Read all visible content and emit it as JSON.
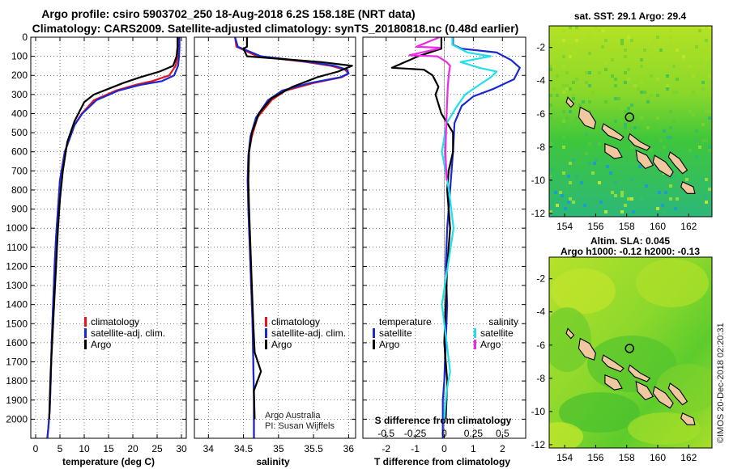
{
  "title_line1": "Argo profile: csiro 5903702_250 18-Aug-2018 6.2S 158.18E (NRT data)",
  "title_line2": "Climatology: CARS2009. Satellite-adjusted climatology: synTS_20180818.nc (0.48d earlier)",
  "credit_line1": "Argo Australia",
  "credit_line2": "PI: Susan Wijffels",
  "imos_stamp": "©IMOS 20-Dec-2018 02:20:31",
  "colors": {
    "climatology": "#e8141c",
    "satellite": "#1a28d0",
    "argo": "#000000",
    "salinity_satellite": "#20e0ee",
    "salinity_argo": "#ee28e6"
  },
  "legends": {
    "temperature_panel": [
      "climatology",
      "satellite-adj. clim.",
      "Argo"
    ],
    "salinity_panel": [
      "climatology",
      "satellite-adj. clim.",
      "Argo"
    ],
    "difference_panel": {
      "temp_header": "temperature",
      "sal_header": "salinity",
      "temp_items": [
        "satellite",
        "Argo"
      ],
      "sal_items": [
        "satellite",
        "Argo"
      ]
    }
  },
  "chart_data": [
    {
      "type": "line",
      "name": "temperature-profile",
      "xlabel": "temperature (deg C)",
      "ylabel": "",
      "xlim": [
        -1,
        31
      ],
      "ylim": [
        2100,
        0
      ],
      "xticks": [
        0,
        5,
        10,
        15,
        20,
        25,
        30
      ],
      "yticks": [
        0,
        100,
        200,
        300,
        400,
        500,
        600,
        700,
        800,
        900,
        1000,
        1100,
        1200,
        1300,
        1400,
        1500,
        1600,
        1700,
        1800,
        1900,
        2000
      ],
      "grid": true,
      "legend": "lower-right",
      "series": [
        {
          "name": "climatology",
          "color": "#e8141c",
          "x": [
            29.3,
            29.3,
            29.2,
            28.8,
            27.5,
            24.0,
            20.5,
            16.5,
            12.0,
            9.5,
            8.0,
            6.0,
            5.0,
            4.6,
            4.2,
            3.9,
            3.6,
            3.3,
            3.1,
            2.9,
            2.6,
            2.4
          ],
          "y": [
            0,
            50,
            100,
            150,
            200,
            230,
            250,
            280,
            330,
            400,
            460,
            600,
            750,
            900,
            1050,
            1200,
            1400,
            1600,
            1800,
            1950,
            2050,
            2100
          ]
        },
        {
          "name": "satellite-adj. clim.",
          "color": "#1a28d0",
          "x": [
            29.6,
            29.6,
            29.5,
            29.3,
            28.5,
            26.0,
            21.5,
            17.0,
            12.5,
            9.6,
            8.0,
            6.0,
            5.0,
            4.6,
            4.2,
            3.9,
            3.6,
            3.3,
            3.1,
            2.9,
            2.6,
            2.4
          ],
          "y": [
            0,
            50,
            100,
            150,
            200,
            230,
            250,
            280,
            330,
            400,
            460,
            600,
            750,
            900,
            1050,
            1200,
            1400,
            1600,
            1800,
            1950,
            2050,
            2100
          ]
        },
        {
          "name": "Argo",
          "color": "#000000",
          "x": [
            29.2,
            29.2,
            29.0,
            28.3,
            25.5,
            21.5,
            18.0,
            15.0,
            12.0,
            10.0,
            8.0,
            6.5,
            5.6,
            5.0,
            4.6,
            4.3,
            4.0,
            3.7,
            3.4,
            3.1,
            2.9,
            2.8
          ],
          "y": [
            0,
            50,
            100,
            150,
            180,
            210,
            240,
            270,
            300,
            340,
            440,
            550,
            700,
            850,
            1000,
            1150,
            1300,
            1450,
            1600,
            1750,
            1900,
            2000
          ]
        }
      ]
    },
    {
      "type": "line",
      "name": "salinity-profile",
      "xlabel": "salinity",
      "ylabel": "",
      "xlim": [
        33.8,
        36.1
      ],
      "ylim": [
        2100,
        0
      ],
      "xticks": [
        34,
        34.5,
        35,
        35.5,
        36
      ],
      "yticks": [
        0,
        100,
        200,
        300,
        400,
        500,
        600,
        700,
        800,
        900,
        1000,
        1100,
        1200,
        1300,
        1400,
        1500,
        1600,
        1700,
        1800,
        1900,
        2000
      ],
      "grid": true,
      "legend": "lower-right",
      "series": [
        {
          "name": "climatology",
          "color": "#e8141c",
          "x": [
            34.38,
            34.4,
            34.7,
            35.4,
            35.75,
            35.95,
            36.0,
            35.9,
            35.5,
            35.1,
            34.9,
            34.7,
            34.62,
            34.57,
            34.56,
            34.57,
            34.59,
            34.61,
            34.63,
            34.64,
            34.65,
            34.65
          ],
          "y": [
            0,
            50,
            100,
            130,
            150,
            170,
            190,
            210,
            240,
            280,
            330,
            420,
            520,
            620,
            750,
            900,
            1100,
            1300,
            1500,
            1700,
            1900,
            2100
          ]
        },
        {
          "name": "satellite-adj. clim.",
          "color": "#1a28d0",
          "x": [
            34.38,
            34.42,
            34.75,
            35.45,
            35.8,
            35.98,
            36.0,
            35.88,
            35.45,
            35.05,
            34.85,
            34.68,
            34.6,
            34.57,
            34.56,
            34.57,
            34.59,
            34.61,
            34.63,
            34.64,
            34.65,
            34.65
          ],
          "y": [
            0,
            50,
            100,
            130,
            150,
            170,
            190,
            210,
            240,
            280,
            330,
            420,
            520,
            620,
            750,
            900,
            1100,
            1300,
            1500,
            1700,
            1900,
            2100
          ]
        },
        {
          "name": "Argo",
          "color": "#000000",
          "x": [
            34.55,
            34.55,
            34.5,
            34.55,
            35.6,
            36.05,
            35.85,
            35.55,
            35.2,
            34.9,
            34.72,
            34.62,
            34.58,
            34.57,
            34.58,
            34.6,
            34.62,
            34.64,
            34.66,
            34.75,
            34.65,
            34.66
          ],
          "y": [
            0,
            50,
            60,
            100,
            130,
            150,
            180,
            210,
            260,
            320,
            400,
            500,
            600,
            750,
            900,
            1100,
            1300,
            1500,
            1650,
            1750,
            1850,
            2000
          ]
        }
      ]
    },
    {
      "type": "line",
      "name": "difference-from-climatology",
      "xlabel": "T difference from climatology",
      "x2label": "S difference from climatology",
      "ylabel": "",
      "xlim": [
        -2.8,
        2.8
      ],
      "x2lim": [
        -0.7,
        0.7
      ],
      "ylim": [
        2100,
        0
      ],
      "xticks": [
        -2,
        -1,
        0,
        1,
        2
      ],
      "x2ticks": [
        -0.5,
        -0.25,
        0,
        0.25,
        0.5
      ],
      "x2ticklabels": [
        "-0.5",
        "-0.25",
        "0",
        "0.25",
        "0.5"
      ],
      "yticks": [
        0,
        100,
        200,
        300,
        400,
        500,
        600,
        700,
        800,
        900,
        1000,
        1100,
        1200,
        1300,
        1400,
        1500,
        1600,
        1700,
        1800,
        1900,
        2000
      ],
      "grid": true,
      "legend": "lower",
      "series": [
        {
          "name": "T satellite",
          "axis": "T",
          "color": "#1a28d0",
          "x": [
            0.3,
            0.3,
            0.6,
            1.8,
            2.3,
            2.6,
            2.4,
            1.7,
            1.0,
            0.6,
            0.35,
            0.3,
            0.2,
            0.1,
            0.05,
            0.1,
            0.05,
            0.0,
            -0.05,
            -0.05,
            -0.05
          ],
          "y": [
            0,
            40,
            60,
            80,
            120,
            160,
            220,
            270,
            310,
            360,
            450,
            600,
            800,
            1000,
            1200,
            1400,
            1600,
            1800,
            1900,
            2000,
            2100
          ]
        },
        {
          "name": "T Argo",
          "axis": "T",
          "color": "#000000",
          "x": [
            -0.1,
            -0.1,
            -0.9,
            -1.8,
            -0.7,
            -0.4,
            -0.2,
            -0.3,
            -0.1,
            0.3,
            0.3,
            0.15,
            0.1,
            0.15,
            0.2,
            0.1,
            0.05,
            0.0,
            0.1,
            0.05
          ],
          "y": [
            0,
            60,
            100,
            160,
            170,
            200,
            260,
            300,
            400,
            500,
            600,
            700,
            800,
            900,
            1000,
            1200,
            1400,
            1600,
            1800,
            2000
          ]
        },
        {
          "name": "S satellite",
          "axis": "S",
          "color": "#20e0ee",
          "x": [
            0.07,
            0.07,
            0.2,
            0.4,
            0.14,
            0.3,
            0.45,
            0.4,
            0.3,
            0.18,
            0.1,
            0.02,
            -0.02,
            0.04,
            0.08,
            0.03,
            -0.02,
            0.02,
            0.05,
            0.02,
            0.0
          ],
          "y": [
            0,
            40,
            80,
            100,
            130,
            160,
            180,
            210,
            250,
            300,
            370,
            450,
            600,
            800,
            1000,
            1200,
            1400,
            1600,
            1750,
            1850,
            2000
          ]
        },
        {
          "name": "S Argo",
          "axis": "S",
          "color": "#ee28e6",
          "x": [
            -0.04,
            -0.24,
            -0.04,
            -0.05,
            -0.3,
            -0.06,
            0.02,
            0.05,
            0.04,
            0.03,
            0.02,
            0.01,
            0.02
          ],
          "y": [
            0,
            50,
            55,
            60,
            95,
            100,
            130,
            150,
            190,
            260,
            400,
            600,
            750
          ]
        }
      ]
    },
    {
      "type": "heatmap",
      "name": "map-sst",
      "title": "sat. SST: 29.1  Argo: 29.4",
      "xlim": [
        153,
        163.5
      ],
      "ylim": [
        -12.2,
        -0.7
      ],
      "xticks": [
        154,
        156,
        158,
        160,
        162
      ],
      "yticks": [
        -2,
        -4,
        -6,
        -8,
        -10,
        -12
      ],
      "argo_position": {
        "lon": 158.18,
        "lat": -6.2
      }
    },
    {
      "type": "heatmap",
      "name": "map-sla",
      "title_line1": "Altim. SLA: 0.045",
      "title_line2": "Argo h1000: -0.12  h2000: -0.13",
      "xlim": [
        153,
        163.5
      ],
      "ylim": [
        -12.2,
        -0.7
      ],
      "xticks": [
        154,
        156,
        158,
        160,
        162
      ],
      "yticks": [
        -2,
        -4,
        -6,
        -8,
        -10,
        -12
      ],
      "argo_position": {
        "lon": 158.18,
        "lat": -6.2
      }
    }
  ]
}
